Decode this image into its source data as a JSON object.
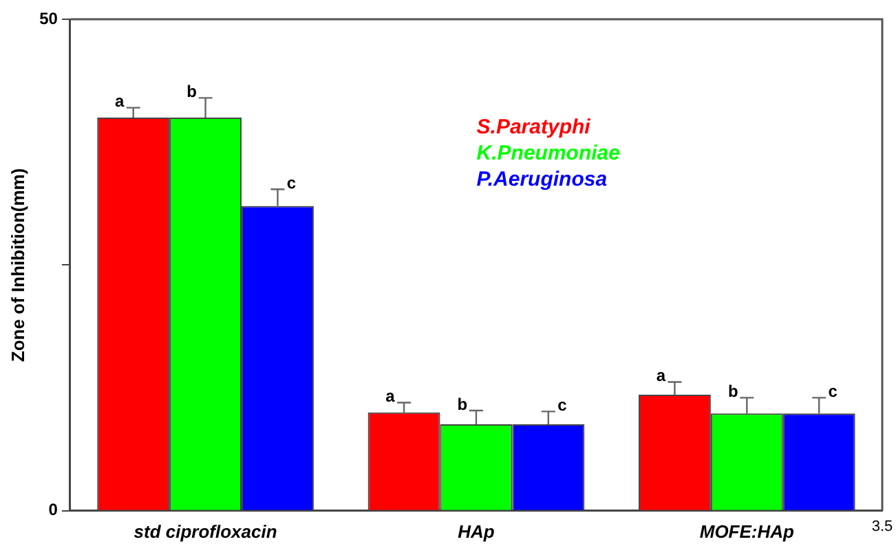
{
  "chart_data": {
    "type": "bar",
    "ylabel": "Zone of Inhibition(mm)",
    "categories": [
      "std ciprofloxacin",
      "HAp",
      "MOFE:HAp"
    ],
    "series": [
      {
        "name": "S.Paratyphi",
        "color": "#ff0000",
        "values": [
          40,
          10,
          11.8
        ],
        "errors": [
          1,
          1,
          1.3
        ],
        "value_labels": [
          "a",
          "a",
          "a"
        ]
      },
      {
        "name": "K.Pneumoniae",
        "color": "#00ff00",
        "values": [
          40,
          8.8,
          9.9
        ],
        "errors": [
          2,
          1.4,
          1.6
        ],
        "value_labels": [
          "b",
          "b",
          "b"
        ]
      },
      {
        "name": "P.Aeruginosa",
        "color": "#0000ff",
        "values": [
          31,
          8.8,
          9.9
        ],
        "errors": [
          1.7,
          1.3,
          1.6
        ],
        "value_labels": [
          "c",
          "c",
          "c"
        ]
      }
    ],
    "ylim": [
      0,
      50
    ],
    "yticks": [
      0,
      {
        "value": 25,
        "label": null
      },
      50
    ],
    "grid": false,
    "legend": "top right",
    "annotations": [
      "3.5"
    ]
  }
}
